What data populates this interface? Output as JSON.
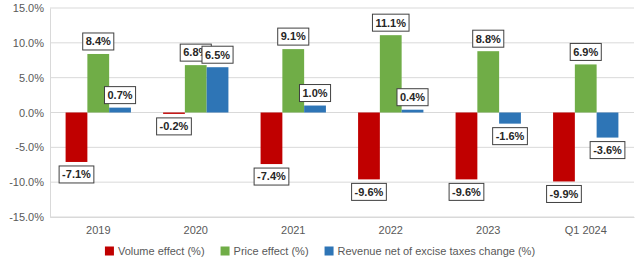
{
  "chart_data": {
    "type": "bar",
    "categories": [
      "2019",
      "2020",
      "2021",
      "2022",
      "2023",
      "Q1 2024"
    ],
    "series": [
      {
        "name": "Volume effect (%)",
        "color": "#c00000",
        "values": [
          -7.1,
          -0.2,
          -7.4,
          -9.6,
          -9.6,
          -9.9
        ],
        "value_labels": [
          "-7.1%",
          "-0.2%",
          "-7.4%",
          "-9.6%",
          "-9.6%",
          "-9.9%"
        ]
      },
      {
        "name": "Price effect (%)",
        "color": "#70ad47",
        "values": [
          8.4,
          6.8,
          9.1,
          11.1,
          8.8,
          6.9
        ],
        "value_labels": [
          "8.4%",
          "6.8%",
          "9.1%",
          "11.1%",
          "8.8%",
          "6.9%"
        ]
      },
      {
        "name": "Revenue net of excise taxes change (%)",
        "color": "#2e75b6",
        "values": [
          0.7,
          6.5,
          1.0,
          0.4,
          -1.6,
          -3.6
        ],
        "value_labels": [
          "0.7%",
          "6.5%",
          "1.0%",
          "0.4%",
          "-1.6%",
          "-3.6%"
        ]
      }
    ],
    "ylim": [
      -15,
      15
    ],
    "yticks": [
      {
        "value": -15,
        "label": "-15.0%"
      },
      {
        "value": -10,
        "label": "-10.0%"
      },
      {
        "value": -5,
        "label": "-5.0%"
      },
      {
        "value": 0,
        "label": "0.0%"
      },
      {
        "value": 5,
        "label": "5.0%"
      },
      {
        "value": 10,
        "label": "10.0%"
      },
      {
        "value": 15,
        "label": "15.0%"
      }
    ],
    "grid": true,
    "data_labels": true,
    "legend": "bottom"
  }
}
